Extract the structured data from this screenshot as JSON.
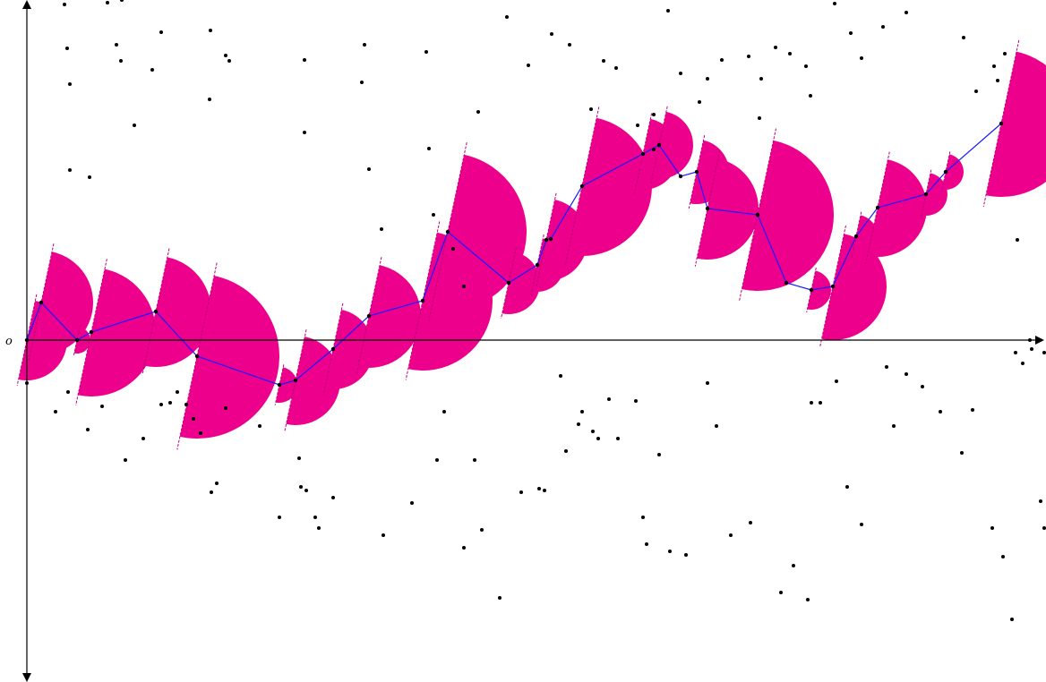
{
  "labels": {
    "origin": "o"
  },
  "colors": {
    "background": "#ffffff",
    "axis": "#000000",
    "sector_fill": "#ec008c",
    "sector_edge": "#c0007a",
    "path": "#1a1aff",
    "point": "#000000"
  },
  "axes": {
    "x_arrow": "right",
    "y_arrow": "up-and-down"
  },
  "path": {
    "points": [
      [
        0,
        0
      ],
      [
        16,
        42
      ],
      [
        56,
        0
      ],
      [
        72,
        9
      ],
      [
        144,
        32
      ],
      [
        190,
        -18
      ],
      [
        282,
        -50
      ],
      [
        300,
        -45
      ],
      [
        342,
        -10
      ],
      [
        382,
        27
      ],
      [
        442,
        44
      ],
      [
        470,
        121
      ],
      [
        538,
        64
      ],
      [
        570,
        84
      ],
      [
        580,
        112
      ],
      [
        585,
        113
      ],
      [
        620,
        172
      ],
      [
        688,
        208
      ],
      [
        706,
        218
      ],
      [
        730,
        183
      ],
      [
        748,
        188
      ],
      [
        760,
        147
      ],
      [
        816,
        140
      ],
      [
        848,
        64
      ],
      [
        876,
        56
      ],
      [
        900,
        60
      ],
      [
        926,
        116
      ],
      [
        950,
        148
      ],
      [
        1004,
        163
      ],
      [
        1026,
        188
      ],
      [
        1088,
        242
      ]
    ],
    "sectors": [
      [
        0,
        0,
        45
      ],
      [
        16,
        42,
        58
      ],
      [
        56,
        0,
        15
      ],
      [
        72,
        9,
        72
      ],
      [
        144,
        32,
        62
      ],
      [
        190,
        -18,
        92
      ],
      [
        282,
        -50,
        20
      ],
      [
        300,
        -45,
        50
      ],
      [
        342,
        -10,
        45
      ],
      [
        382,
        27,
        58
      ],
      [
        442,
        44,
        78
      ],
      [
        470,
        121,
        88
      ],
      [
        538,
        64,
        35
      ],
      [
        570,
        84,
        30
      ],
      [
        580,
        112,
        46
      ],
      [
        620,
        172,
        78
      ],
      [
        688,
        208,
        40
      ],
      [
        706,
        218,
        38
      ],
      [
        748,
        188,
        36
      ],
      [
        760,
        147,
        57
      ],
      [
        816,
        140,
        85
      ],
      [
        876,
        56,
        22
      ],
      [
        900,
        60,
        60
      ],
      [
        926,
        116,
        24
      ],
      [
        950,
        148,
        55
      ],
      [
        1004,
        163,
        24
      ],
      [
        1026,
        188,
        20
      ],
      [
        1088,
        242,
        82
      ]
    ]
  },
  "scatter": [
    [
      42,
      375
    ],
    [
      45,
      326
    ],
    [
      90,
      377
    ],
    [
      100,
      330
    ],
    [
      105,
      312
    ],
    [
      106,
      380
    ],
    [
      140,
      302
    ],
    [
      150,
      344
    ],
    [
      205,
      346
    ],
    [
      222,
      318
    ],
    [
      226,
      312
    ],
    [
      204,
      269
    ],
    [
      48,
      286
    ],
    [
      48,
      190
    ],
    [
      70,
      182
    ],
    [
      120,
      240
    ],
    [
      310,
      313
    ],
    [
      310,
      232
    ],
    [
      377,
      330
    ],
    [
      446,
      322
    ],
    [
      374,
      288
    ],
    [
      382,
      191
    ],
    [
      396,
      124
    ],
    [
      449,
      214
    ],
    [
      454,
      140
    ],
    [
      476,
      102
    ],
    [
      488,
      60
    ],
    [
      504,
      255
    ],
    [
      536,
      361
    ],
    [
      560,
      307
    ],
    [
      586,
      342
    ],
    [
      606,
      330
    ],
    [
      630,
      258
    ],
    [
      644,
      312
    ],
    [
      658,
      304
    ],
    [
      682,
      240
    ],
    [
      700,
      252
    ],
    [
      700,
      213
    ],
    [
      716,
      368
    ],
    [
      730,
      298
    ],
    [
      751,
      266
    ],
    [
      760,
      292
    ],
    [
      776,
      313
    ],
    [
      806,
      317
    ],
    [
      818,
      248
    ],
    [
      820,
      292
    ],
    [
      836,
      327
    ],
    [
      852,
      320
    ],
    [
      870,
      306
    ],
    [
      875,
      273
    ],
    [
      902,
      376
    ],
    [
      920,
      343
    ],
    [
      932,
      315
    ],
    [
      956,
      350
    ],
    [
      982,
      366
    ],
    [
      1046,
      338
    ],
    [
      1060,
      278
    ],
    [
      1080,
      306
    ],
    [
      1084,
      290
    ],
    [
      1092,
      320
    ],
    [
      1106,
      112
    ],
    [
      1120,
      0
    ],
    [
      0,
      -48
    ],
    [
      32,
      -80
    ],
    [
      46,
      -58
    ],
    [
      68,
      -100
    ],
    [
      84,
      -74
    ],
    [
      110,
      -134
    ],
    [
      130,
      -110
    ],
    [
      150,
      -72
    ],
    [
      160,
      -70
    ],
    [
      168,
      -58
    ],
    [
      178,
      -72
    ],
    [
      186,
      -88
    ],
    [
      194,
      -104
    ],
    [
      206,
      -170
    ],
    [
      212,
      -160
    ],
    [
      222,
      -76
    ],
    [
      260,
      -96
    ],
    [
      282,
      -198
    ],
    [
      304,
      -132
    ],
    [
      306,
      -164
    ],
    [
      312,
      -168
    ],
    [
      322,
      -198
    ],
    [
      326,
      -210
    ],
    [
      342,
      -176
    ],
    [
      398,
      -218
    ],
    [
      430,
      -182
    ],
    [
      458,
      -134
    ],
    [
      466,
      -80
    ],
    [
      488,
      -232
    ],
    [
      500,
      -134
    ],
    [
      508,
      -212
    ],
    [
      528,
      -288
    ],
    [
      552,
      -170
    ],
    [
      572,
      -166
    ],
    [
      578,
      -168
    ],
    [
      596,
      -40
    ],
    [
      602,
      -124
    ],
    [
      616,
      -94
    ],
    [
      620,
      -80
    ],
    [
      632,
      -102
    ],
    [
      638,
      -110
    ],
    [
      650,
      -66
    ],
    [
      660,
      -110
    ],
    [
      680,
      -68
    ],
    [
      688,
      -198
    ],
    [
      692,
      -228
    ],
    [
      706,
      -128
    ],
    [
      718,
      -236
    ],
    [
      736,
      -240
    ],
    [
      760,
      -48
    ],
    [
      770,
      -96
    ],
    [
      786,
      -218
    ],
    [
      808,
      -204
    ],
    [
      842,
      -282
    ],
    [
      856,
      -252
    ],
    [
      872,
      -290
    ],
    [
      876,
      -70
    ],
    [
      886,
      -70
    ],
    [
      904,
      -46
    ],
    [
      916,
      -164
    ],
    [
      932,
      -206
    ],
    [
      960,
      -30
    ],
    [
      968,
      -96
    ],
    [
      982,
      -38
    ],
    [
      1000,
      -52
    ],
    [
      1020,
      -80
    ],
    [
      1044,
      -126
    ],
    [
      1056,
      -78
    ],
    [
      1078,
      -210
    ],
    [
      1090,
      -242
    ],
    [
      1100,
      -312
    ],
    [
      1104,
      -14
    ],
    [
      1112,
      -26
    ],
    [
      1122,
      -10
    ],
    [
      1132,
      -180
    ],
    [
      1136,
      -210
    ],
    [
      1144,
      -232
    ],
    [
      1136,
      -14
    ]
  ]
}
